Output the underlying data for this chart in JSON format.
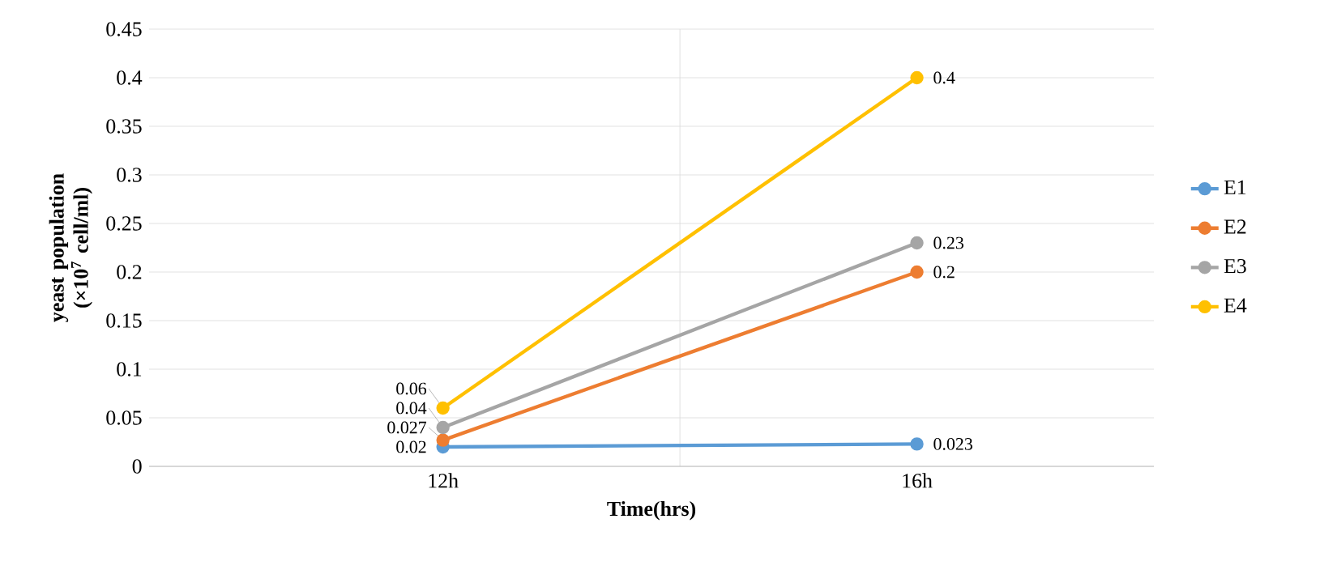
{
  "chart_data": {
    "type": "line",
    "xlabel": "Time(hrs)",
    "ylabel": "yeast population (×10$^{7}$ cell/ml)",
    "categories": [
      "12h",
      "16h"
    ],
    "series": [
      {
        "name": "E1",
        "color": "#5b9bd5",
        "values": [
          0.02,
          0.023
        ]
      },
      {
        "name": "E2",
        "color": "#ed7d31",
        "values": [
          0.027,
          0.2
        ]
      },
      {
        "name": "E3",
        "color": "#a5a5a5",
        "values": [
          0.04,
          0.23
        ]
      },
      {
        "name": "E4",
        "color": "#ffc000",
        "values": [
          0.06,
          0.4
        ]
      }
    ],
    "ylim": [
      0,
      0.45
    ],
    "yticks": [
      0,
      0.05,
      0.1,
      0.15,
      0.2,
      0.25,
      0.3,
      0.35,
      0.4,
      0.45
    ],
    "grid": true,
    "legend": "right",
    "marker": "circle",
    "line_style": "solid",
    "data_labels": true
  }
}
